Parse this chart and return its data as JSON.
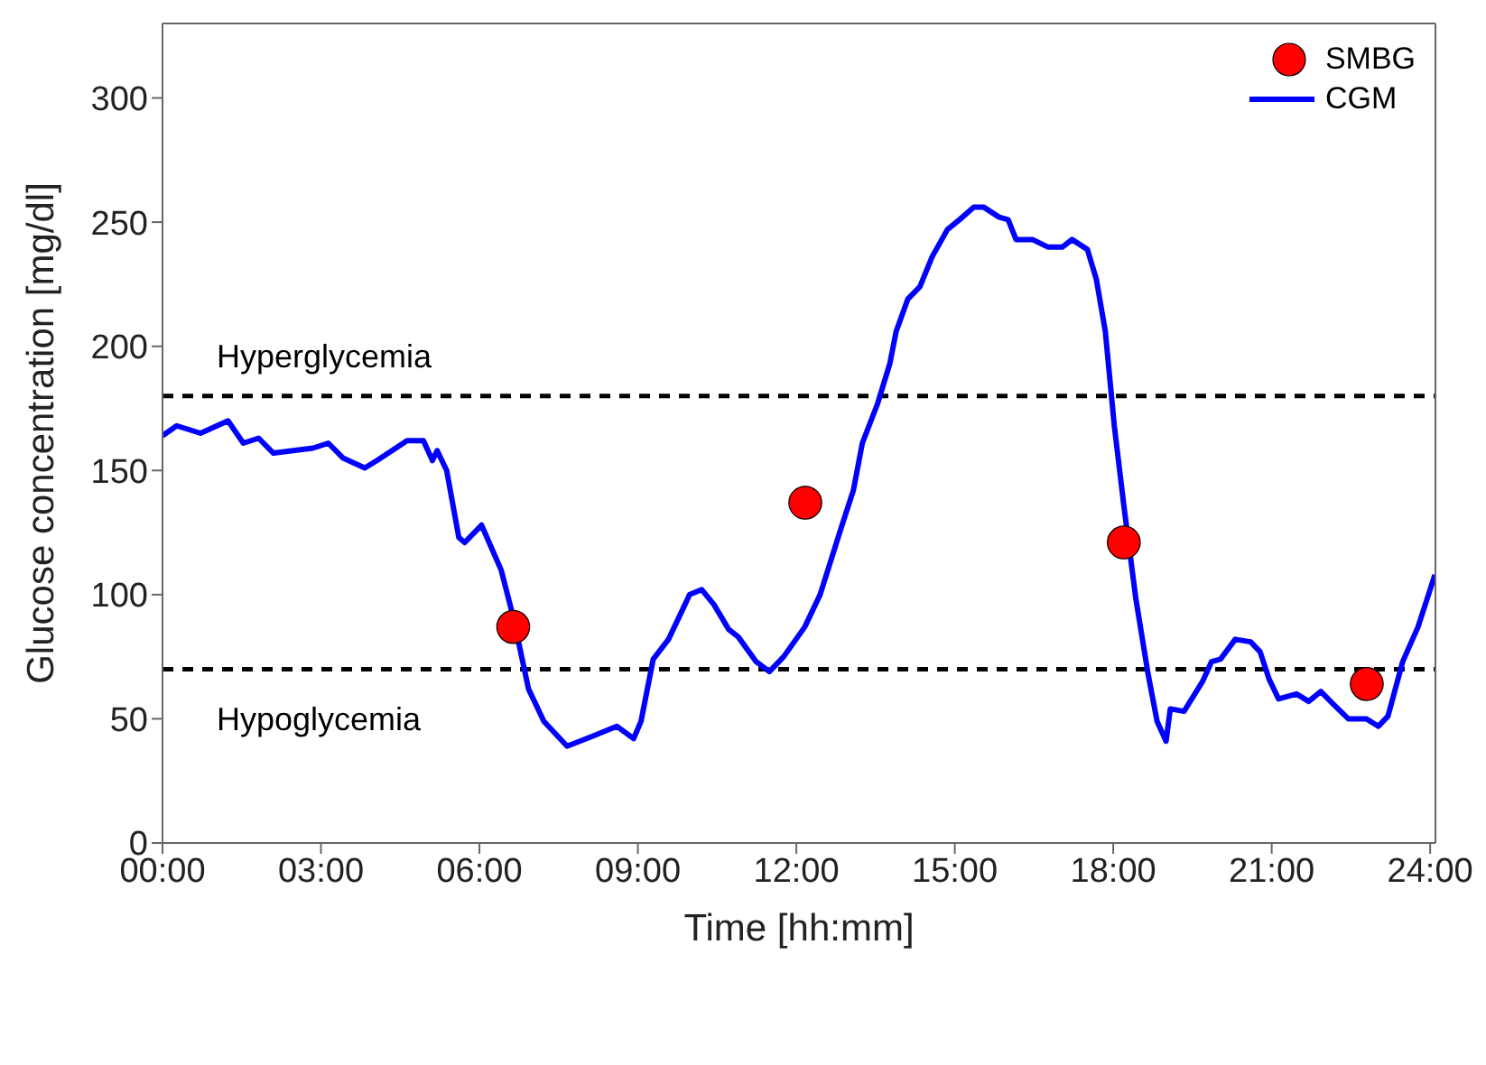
{
  "chart_data": {
    "type": "line",
    "xlabel": "Time [hh:mm]",
    "ylabel": "Glucose concentration [mg/dl]",
    "xlim": [
      0,
      24.1
    ],
    "ylim": [
      0,
      330
    ],
    "xticks": [
      {
        "value": 0,
        "label": "00:00"
      },
      {
        "value": 3,
        "label": "03:00"
      },
      {
        "value": 6,
        "label": "06:00"
      },
      {
        "value": 9,
        "label": "09:00"
      },
      {
        "value": 12,
        "label": "12:00"
      },
      {
        "value": 15,
        "label": "15:00"
      },
      {
        "value": 18,
        "label": "18:00"
      },
      {
        "value": 21,
        "label": "21:00"
      },
      {
        "value": 24,
        "label": "24:00"
      }
    ],
    "yticks": [
      0,
      50,
      100,
      150,
      200,
      250,
      300
    ],
    "grid": false,
    "legend": "top right",
    "ref_lines": [
      {
        "axis": "y",
        "value": 180,
        "label": "Hyperglycemia",
        "color": "#000000",
        "line_style": "dashed"
      },
      {
        "axis": "y",
        "value": 70,
        "label": "Hypoglycemia",
        "color": "#000000",
        "line_style": "dashed"
      }
    ],
    "series": [
      {
        "name": "SMBG",
        "type": "scatter",
        "color": "#ff0000",
        "marker": "circle",
        "x": [
          6.64,
          12.17,
          18.2,
          22.8
        ],
        "values": [
          87,
          137,
          121,
          64
        ]
      },
      {
        "name": "CGM",
        "color": "#0000ff",
        "marker": "none",
        "line_style": "solid",
        "x": [
          0,
          0.27,
          0.72,
          1.24,
          1.53,
          1.82,
          2.1,
          2.85,
          3.14,
          3.42,
          3.83,
          4.06,
          4.63,
          4.94,
          5.11,
          5.2,
          5.38,
          5.61,
          5.72,
          6.04,
          6.41,
          6.64,
          6.93,
          7.22,
          7.66,
          8.14,
          8.6,
          8.92,
          9.06,
          9.29,
          9.58,
          9.98,
          10.21,
          10.44,
          10.72,
          10.9,
          11.24,
          11.49,
          11.76,
          12.16,
          12.45,
          12.85,
          13.08,
          13.25,
          13.54,
          13.77,
          13.89,
          14.11,
          14.34,
          14.57,
          14.86,
          15.09,
          15.36,
          15.55,
          15.84,
          16.01,
          16.16,
          16.47,
          16.76,
          17.04,
          17.22,
          17.51,
          17.68,
          17.85,
          18.02,
          18.2,
          18.43,
          18.66,
          18.83,
          19.0,
          19.08,
          19.34,
          19.69,
          19.86,
          20.03,
          20.31,
          20.6,
          20.78,
          20.95,
          21.13,
          21.47,
          21.7,
          21.93,
          22.16,
          22.45,
          22.79,
          23.02,
          23.2,
          23.48,
          23.77,
          24.09
        ],
        "values": [
          164,
          168,
          165,
          170,
          161,
          163,
          157,
          159,
          161,
          155,
          151,
          154,
          162,
          162,
          154,
          158,
          150,
          123,
          121,
          128,
          110,
          91,
          62,
          49,
          39,
          43,
          47,
          42,
          49,
          74,
          82,
          100,
          102,
          96,
          86,
          83,
          73,
          69,
          75,
          87,
          100,
          127,
          142,
          161,
          177,
          193,
          206,
          219,
          224,
          236,
          247,
          251,
          256,
          256,
          252,
          251,
          243,
          243,
          240,
          240,
          243,
          239,
          227,
          206,
          168,
          136,
          98,
          68,
          49,
          41,
          54,
          53,
          65,
          73,
          74,
          82,
          81,
          77,
          66,
          58,
          60,
          57,
          61,
          56,
          50,
          50,
          47,
          51,
          73,
          87,
          108
        ]
      }
    ]
  }
}
